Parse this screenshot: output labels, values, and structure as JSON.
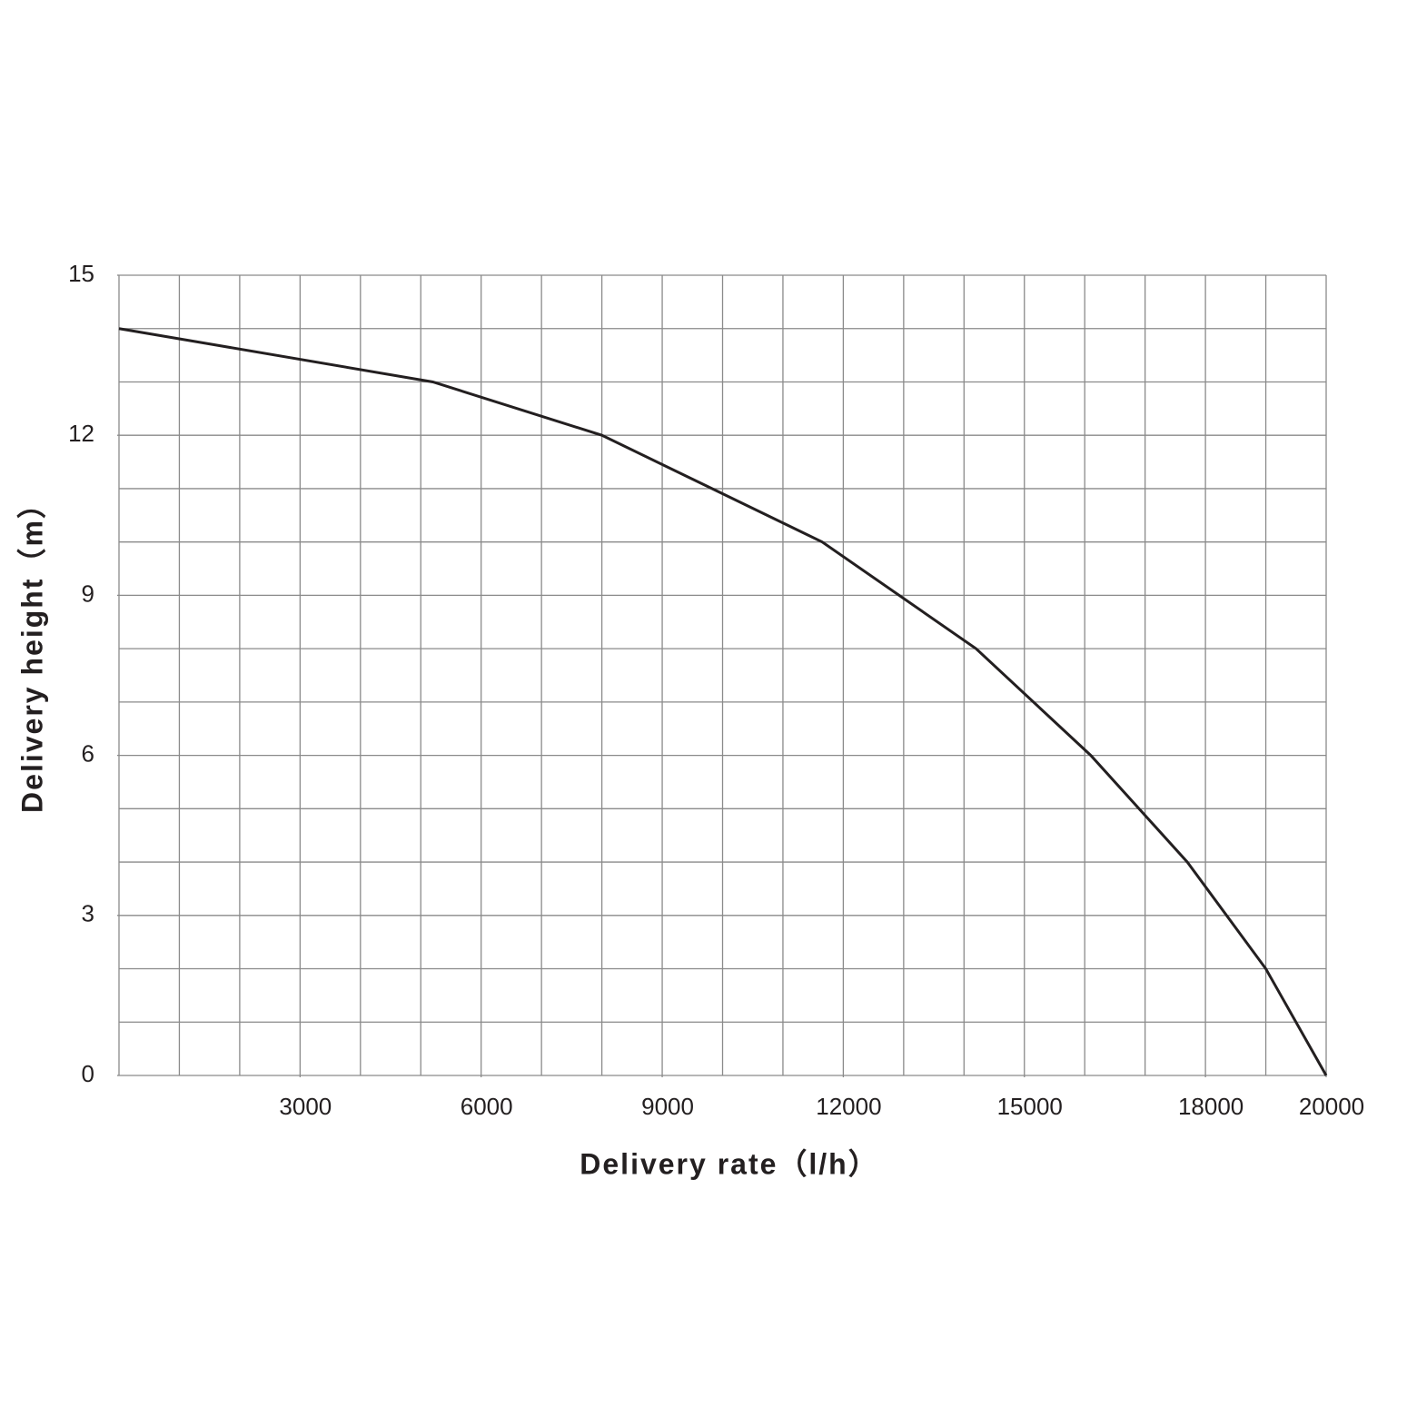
{
  "chart_data": {
    "type": "line",
    "x_label": "Delivery rate（l/h）",
    "y_label": "Delivery height（m）",
    "x": [
      0,
      5200,
      8000,
      11650,
      14200,
      16100,
      17700,
      19000,
      20000
    ],
    "values": [
      14,
      13,
      12,
      10,
      8,
      6,
      4,
      2,
      0
    ],
    "color": "#231f20",
    "xlim": [
      0,
      20000
    ],
    "xticks": [
      3000,
      6000,
      9000,
      12000,
      15000,
      18000,
      20000
    ],
    "ylim": [
      0,
      15
    ],
    "yticks": [
      0,
      3,
      6,
      9,
      12,
      15
    ],
    "grid": true,
    "xgrid_step": 1000,
    "ygrid_step": 1
  }
}
